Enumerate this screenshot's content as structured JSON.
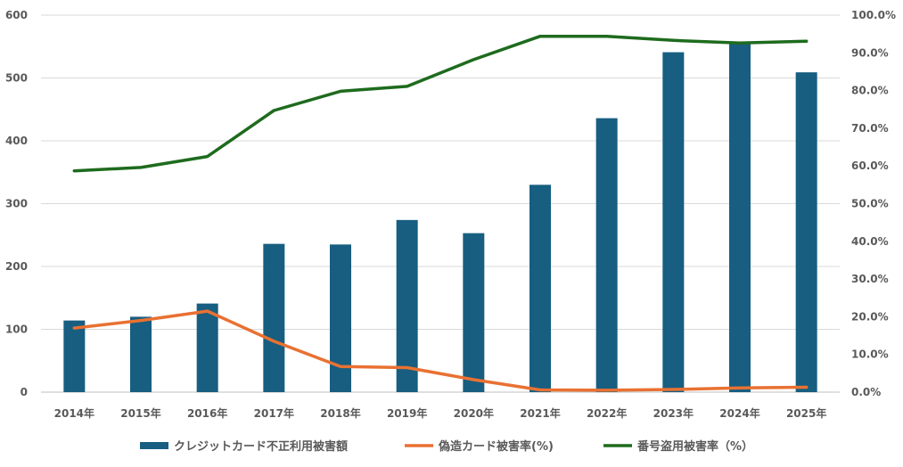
{
  "chart_data": {
    "type": "bar",
    "categories": [
      "2014年",
      "2015年",
      "2016年",
      "2017年",
      "2018年",
      "2019年",
      "2020年",
      "2021年",
      "2022年",
      "2023年",
      "2024年",
      "2025年"
    ],
    "series": [
      {
        "name": "クレジットカード不正利用被害額",
        "kind": "bar",
        "axis": "left",
        "color": "#175E80",
        "values": [
          114,
          120,
          141,
          236,
          235,
          274,
          253,
          330,
          436,
          541,
          555,
          509
        ]
      },
      {
        "name": "偽造カード被害率(%)",
        "kind": "line",
        "axis": "right",
        "color": "#E97132",
        "values": [
          17.0,
          19.0,
          21.5,
          13.5,
          6.8,
          6.5,
          3.3,
          0.6,
          0.5,
          0.7,
          1.1,
          1.3
        ]
      },
      {
        "name": "番号盗用被害率（%）",
        "kind": "line",
        "axis": "right",
        "color": "#1E6B1E",
        "values": [
          58.7,
          59.6,
          62.5,
          74.7,
          79.8,
          81.1,
          88.2,
          94.4,
          94.4,
          93.3,
          92.6,
          93.1
        ]
      }
    ],
    "y_left": {
      "min": 0,
      "max": 600,
      "ticks": [
        0,
        100,
        200,
        300,
        400,
        500,
        600
      ],
      "tick_labels": [
        "0",
        "100",
        "200",
        "300",
        "400",
        "500",
        "600"
      ]
    },
    "y_right": {
      "min": 0,
      "max": 100,
      "ticks": [
        0,
        10,
        20,
        30,
        40,
        50,
        60,
        70,
        80,
        90,
        100
      ],
      "tick_labels": [
        "0.0%",
        "10.0%",
        "20.0%",
        "30.0%",
        "40.0%",
        "50.0%",
        "60.0%",
        "70.0%",
        "80.0%",
        "90.0%",
        "100.0%"
      ]
    },
    "grid": true,
    "legend_position": "bottom",
    "title": "",
    "xlabel": "",
    "ylabel": ""
  }
}
